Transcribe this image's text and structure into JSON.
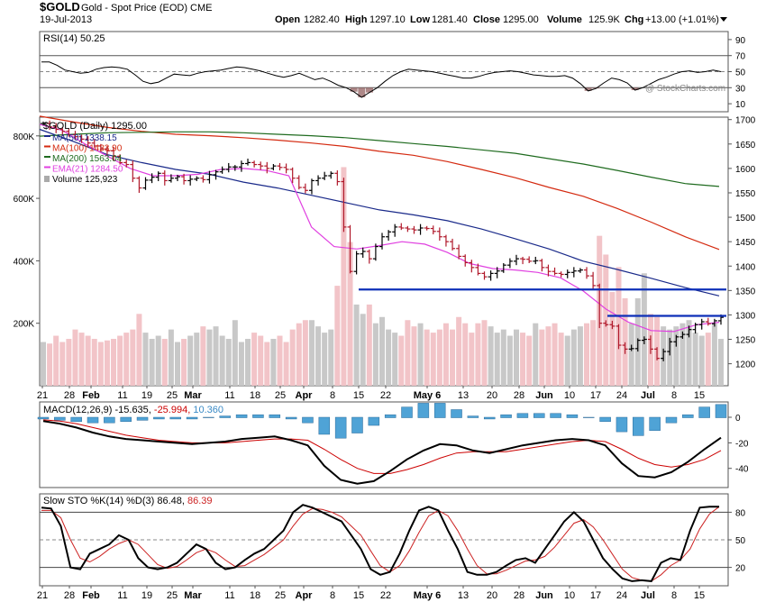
{
  "header": {
    "symbol": "$GOLD",
    "description": "Gold - Spot Price (EOD)",
    "exchange": "CME",
    "date": "19-Jul-2013",
    "open_label": "Open",
    "open": "1282.40",
    "high_label": "High",
    "high": "1297.10",
    "low_label": "Low",
    "low": "1281.40",
    "close_label": "Close",
    "close": "1295.00",
    "volume_label": "Volume",
    "volume": "125.9K",
    "chg_label": "Chg",
    "chg": "+13.00 (+1.01%)",
    "watermark": "@ StockCharts.com"
  },
  "chart_data": [
    {
      "type": "line",
      "panel": "rsi",
      "title": "RSI(14) 50.25",
      "ylim": [
        0,
        100
      ],
      "y_ticks": [
        10,
        30,
        50,
        70,
        90
      ],
      "reference_lines": [
        30,
        50,
        70
      ],
      "series": [
        {
          "name": "RSI(14)",
          "color": "#000000",
          "values": [
            62,
            62,
            58,
            52,
            50,
            48,
            49,
            53,
            55,
            56,
            55,
            53,
            46,
            38,
            35,
            37,
            42,
            47,
            46,
            45,
            48,
            50,
            51,
            52,
            54,
            56,
            55,
            53,
            51,
            48,
            45,
            43,
            45,
            48,
            44,
            40,
            42,
            38,
            33,
            30,
            25,
            18,
            24,
            30,
            38,
            45,
            50,
            53,
            52,
            51,
            50,
            48,
            46,
            44,
            42,
            42,
            44,
            47,
            49,
            50,
            51,
            50,
            48,
            46,
            45,
            44,
            44,
            45,
            42,
            35,
            26,
            29,
            36,
            42,
            40,
            36,
            27,
            30,
            35,
            40,
            43,
            47,
            50,
            51,
            49,
            50,
            52,
            50
          ]
        }
      ]
    },
    {
      "type": "ohlc",
      "panel": "price",
      "title": "$GOLD (Daily) 1295.00",
      "ylim": [
        1155,
        1705
      ],
      "y_ticks": [
        1200,
        1250,
        1300,
        1350,
        1400,
        1450,
        1500,
        1550,
        1600,
        1650,
        1700
      ],
      "x_tick_labels": [
        "21",
        "28",
        "Feb",
        "11",
        "19",
        "25",
        "Mar",
        "11",
        "18",
        "25",
        "Apr",
        "8",
        "15",
        "22",
        "May 6",
        "13",
        "20",
        "28",
        "Jun",
        "10",
        "17",
        "24",
        "Jul",
        "8",
        "15"
      ],
      "close": [
        1692,
        1685,
        1680,
        1676,
        1669,
        1665,
        1660,
        1652,
        1646,
        1640,
        1636,
        1625,
        1612,
        1608,
        1580,
        1560,
        1576,
        1582,
        1590,
        1575,
        1580,
        1583,
        1575,
        1578,
        1580,
        1577,
        1587,
        1593,
        1598,
        1603,
        1603,
        1610,
        1612,
        1608,
        1605,
        1600,
        1605,
        1602,
        1598,
        1580,
        1561,
        1555,
        1575,
        1580,
        1585,
        1590,
        1573,
        1480,
        1389,
        1425,
        1430,
        1415,
        1440,
        1460,
        1470,
        1480,
        1478,
        1476,
        1474,
        1478,
        1477,
        1471,
        1460,
        1450,
        1436,
        1420,
        1407,
        1397,
        1385,
        1378,
        1385,
        1390,
        1402,
        1410,
        1415,
        1414,
        1410,
        1411,
        1397,
        1389,
        1385,
        1383,
        1387,
        1390,
        1392,
        1380,
        1360,
        1283,
        1280,
        1277,
        1238,
        1230,
        1231,
        1248,
        1250,
        1230,
        1211,
        1225,
        1245,
        1255,
        1260,
        1270,
        1280,
        1286,
        1282,
        1288,
        1295
      ],
      "series": [
        {
          "name": "MA(50)",
          "legend": "MA(50) 1338.15",
          "color": "#1a2a8a",
          "values": [
            1680,
            1655,
            1628,
            1612,
            1598,
            1588,
            1572,
            1560,
            1545,
            1530,
            1515,
            1505,
            1493,
            1476,
            1456,
            1435,
            1410,
            1393,
            1375,
            1356,
            1339
          ]
        },
        {
          "name": "MA(100)",
          "legend": "MA(100) 1433.90",
          "color": "#d42a10",
          "values": [
            1707,
            1695,
            1684,
            1676,
            1670,
            1667,
            1663,
            1658,
            1652,
            1645,
            1635,
            1627,
            1614,
            1598,
            1581,
            1561,
            1543,
            1518,
            1490,
            1460,
            1434
          ]
        },
        {
          "name": "MA(200)",
          "legend": "MA(200) 1563.04",
          "color": "#1f6b1f",
          "values": [
            1666,
            1670,
            1673,
            1674,
            1675,
            1675,
            1673,
            1670,
            1667,
            1663,
            1657,
            1651,
            1645,
            1638,
            1631,
            1620,
            1609,
            1596,
            1582,
            1569,
            1563
          ]
        },
        {
          "name": "EMA(21)",
          "legend": "EMA(21) 1284.50",
          "color": "#e040e0",
          "values": [
            1690,
            1678,
            1650,
            1625,
            1600,
            1585,
            1585,
            1588,
            1598,
            1600,
            1596,
            1585,
            1480,
            1440,
            1435,
            1442,
            1450,
            1445,
            1428,
            1405,
            1395,
            1392,
            1387,
            1376,
            1349,
            1312,
            1285,
            1268,
            1266,
            1280,
            1285
          ]
        }
      ],
      "horizontal_lines": [
        {
          "value": 1352,
          "color": "#0d2fb8"
        },
        {
          "value": 1298,
          "color": "#0d2fb8"
        }
      ]
    },
    {
      "type": "bar",
      "panel": "volume",
      "title": "Volume 125,923",
      "y_ticks": [
        "200K",
        "400K",
        "600K",
        "800K"
      ],
      "tick_values": [
        200,
        400,
        600,
        800
      ],
      "ylim_k": [
        0,
        860
      ],
      "values_k": [
        140,
        135,
        160,
        140,
        150,
        180,
        170,
        160,
        150,
        140,
        145,
        150,
        160,
        170,
        180,
        230,
        170,
        150,
        160,
        150,
        180,
        140,
        150,
        160,
        170,
        190,
        180,
        190,
        160,
        150,
        210,
        140,
        150,
        170,
        160,
        140,
        150,
        160,
        140,
        180,
        200,
        210,
        210,
        190,
        170,
        180,
        320,
        700,
        460,
        260,
        230,
        260,
        200,
        220,
        180,
        170,
        160,
        210,
        190,
        200,
        180,
        170,
        180,
        200,
        180,
        220,
        200,
        170,
        200,
        210,
        190,
        170,
        180,
        160,
        180,
        170,
        160,
        200,
        180,
        190,
        200,
        170,
        160,
        180,
        190,
        200,
        210,
        480,
        420,
        300,
        380,
        280,
        200,
        280,
        360,
        230,
        220,
        190,
        180,
        190,
        200,
        210,
        170,
        160,
        170,
        200,
        150
      ]
    },
    {
      "type": "line",
      "panel": "macd",
      "title": "MACD(12,26,9)",
      "macd": "-15.635",
      "signal": "-25.994",
      "histogram": "10.360",
      "ylim": [
        -55,
        12
      ],
      "y_ticks": [
        0,
        -20,
        -40
      ],
      "series": [
        {
          "name": "MACD",
          "color": "#000000",
          "values": [
            -3,
            -5,
            -8,
            -12,
            -15,
            -17,
            -18,
            -19,
            -20,
            -21,
            -20,
            -19,
            -17,
            -16,
            -15,
            -18,
            -22,
            -38,
            -49,
            -52,
            -50,
            -42,
            -33,
            -26,
            -21,
            -22,
            -26,
            -28,
            -25,
            -22,
            -20,
            -18,
            -17,
            -18,
            -22,
            -36,
            -46,
            -47,
            -43,
            -35,
            -25,
            -16
          ]
        },
        {
          "name": "Signal",
          "color": "#cc0000",
          "values": [
            -2,
            -3,
            -5,
            -8,
            -11,
            -14,
            -16,
            -18,
            -19,
            -20,
            -20,
            -20,
            -19,
            -18,
            -17,
            -17,
            -18,
            -25,
            -33,
            -40,
            -44,
            -44,
            -41,
            -37,
            -32,
            -28,
            -27,
            -27,
            -27,
            -25,
            -23,
            -21,
            -19,
            -18,
            -19,
            -25,
            -32,
            -37,
            -39,
            -37,
            -33,
            -26
          ]
        },
        {
          "name": "Histogram",
          "color": "#4fa3d6",
          "values": [
            -1,
            -2,
            -3,
            -4,
            -4,
            -3,
            -2,
            -1,
            -1,
            -1,
            0,
            1,
            2,
            2,
            2,
            -1,
            -4,
            -13,
            -16,
            -12,
            -6,
            2,
            8,
            11,
            11,
            6,
            1,
            -1,
            2,
            3,
            3,
            3,
            2,
            0,
            -3,
            -11,
            -14,
            -10,
            -4,
            2,
            8,
            10
          ]
        }
      ]
    },
    {
      "type": "line",
      "panel": "stochastic",
      "title": "Slow STO %K(14) %D(3)",
      "k_value": "86.48",
      "d_value": "86.39",
      "ylim": [
        0,
        100
      ],
      "y_ticks": [
        20,
        50,
        80
      ],
      "reference_lines": [
        20,
        50,
        80
      ],
      "series": [
        {
          "name": "%K",
          "color": "#000000",
          "values": [
            85,
            84,
            65,
            20,
            18,
            35,
            40,
            45,
            55,
            50,
            30,
            20,
            18,
            20,
            25,
            35,
            45,
            40,
            25,
            18,
            20,
            28,
            35,
            40,
            50,
            60,
            80,
            88,
            85,
            80,
            75,
            70,
            55,
            40,
            18,
            12,
            15,
            35,
            60,
            82,
            86,
            82,
            60,
            40,
            15,
            12,
            12,
            15,
            22,
            28,
            30,
            25,
            40,
            55,
            70,
            80,
            70,
            50,
            30,
            18,
            8,
            5,
            6,
            5,
            25,
            30,
            28,
            60,
            85,
            86,
            86
          ]
        },
        {
          "name": "%D",
          "color": "#cc2222",
          "values": [
            82,
            82,
            74,
            50,
            30,
            26,
            32,
            40,
            46,
            50,
            45,
            34,
            23,
            19,
            21,
            28,
            36,
            40,
            36,
            28,
            21,
            22,
            28,
            34,
            42,
            50,
            65,
            78,
            84,
            83,
            80,
            75,
            65,
            55,
            38,
            22,
            15,
            22,
            38,
            58,
            76,
            82,
            76,
            60,
            40,
            22,
            13,
            13,
            17,
            22,
            27,
            28,
            32,
            42,
            55,
            68,
            72,
            64,
            50,
            34,
            18,
            9,
            6,
            5,
            12,
            22,
            28,
            40,
            62,
            78,
            86
          ]
        }
      ]
    }
  ]
}
